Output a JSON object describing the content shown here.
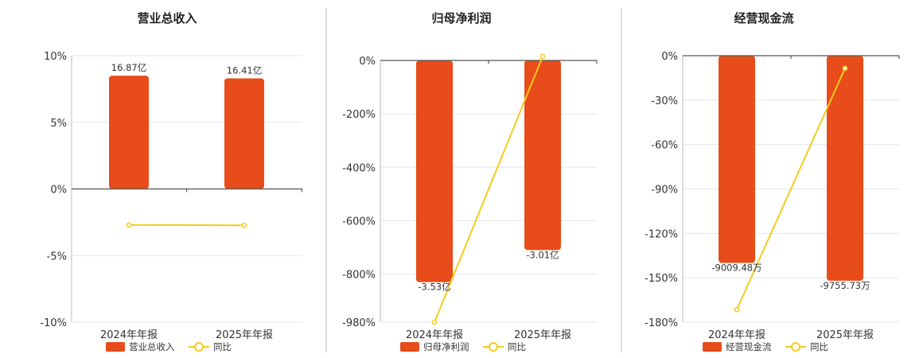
{
  "colors": {
    "bar": "#e84c1a",
    "line": "#f3cc1f"
  },
  "chart_data": [
    {
      "type": "bar",
      "title": "营业总收入",
      "categories": [
        "2024年年报",
        "2025年年报"
      ],
      "y_ticks": [
        "10%",
        "5%",
        "0%",
        "-5%",
        "-10%"
      ],
      "ylim": [
        -10,
        10
      ],
      "series": [
        {
          "name": "营业总收入",
          "kind": "bar",
          "values": [
            8.5,
            8.3
          ],
          "labels": [
            "16.87亿",
            "16.41亿"
          ]
        },
        {
          "name": "同比",
          "kind": "line",
          "values": [
            -2.7,
            -2.73
          ]
        }
      ]
    },
    {
      "type": "bar",
      "title": "归母净利润",
      "categories": [
        "2024年年报",
        "2025年年报"
      ],
      "y_ticks": [
        "0%",
        "-200%",
        "-400%",
        "-600%",
        "-800%",
        "-980%"
      ],
      "ylim": [
        -980,
        0
      ],
      "series": [
        {
          "name": "归母净利润",
          "kind": "bar",
          "values": [
            -830,
            -710
          ],
          "labels": [
            "-3.53亿",
            "-3.01亿"
          ]
        },
        {
          "name": "同比",
          "kind": "line",
          "values": [
            -980,
            15
          ]
        }
      ]
    },
    {
      "type": "bar",
      "title": "经营现金流",
      "categories": [
        "2024年年报",
        "2025年年报"
      ],
      "y_ticks": [
        "0%",
        "-30%",
        "-60%",
        "-90%",
        "-120%",
        "-150%",
        "-180%"
      ],
      "ylim": [
        -180,
        0
      ],
      "series": [
        {
          "name": "经营现金流",
          "kind": "bar",
          "values": [
            -140,
            -152
          ],
          "labels": [
            "-9009.48万",
            "-9755.73万"
          ]
        },
        {
          "name": "同比",
          "kind": "line",
          "values": [
            -171.5,
            -8.5
          ]
        }
      ]
    }
  ]
}
